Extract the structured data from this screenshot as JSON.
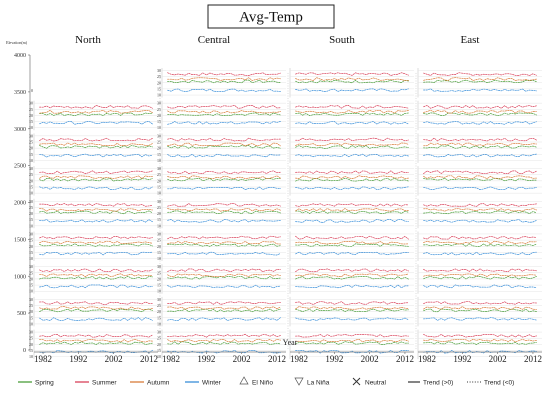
{
  "chart_data": {
    "type": "line",
    "title": "Avg-Temp",
    "columns": [
      "North",
      "Central",
      "South",
      "East"
    ],
    "xlabel": "Year",
    "x_ticks": [
      1982,
      1992,
      2002,
      2012
    ],
    "x_range": [
      1980,
      2014
    ],
    "left_axis": {
      "label": "Elevation(m)",
      "ticks": [
        0,
        500,
        1000,
        1500,
        2000,
        2500,
        3000,
        3500,
        4000
      ],
      "range": [
        0,
        4000
      ]
    },
    "panel_axis": {
      "label": "Value(°C)",
      "ticks": [
        10,
        15,
        20,
        25,
        30
      ],
      "range": [
        8,
        32
      ]
    },
    "panel_rows": 9,
    "series": [
      {
        "name": "Spring",
        "color": "#4a9e3a",
        "dash": "1.5,1"
      },
      {
        "name": "Summer",
        "color": "#d9415a",
        "dash": "1.5,1"
      },
      {
        "name": "Autumn",
        "color": "#d97c3a",
        "dash": "1.5,1"
      },
      {
        "name": "Winter",
        "color": "#3a8fd9",
        "dash": "1.5,1"
      }
    ],
    "panel_means": {
      "Spring": 21,
      "Summer": 27,
      "Autumn": 23,
      "Winter": 14
    },
    "legend_markers": [
      "El Niño",
      "La Niña",
      "Neutral"
    ],
    "legend_trends": [
      "Trend (>0)",
      "Trend (<0)"
    ],
    "legend": [
      {
        "label": "Spring",
        "kind": "line",
        "color": "#4a9e3a"
      },
      {
        "label": "Summer",
        "kind": "line",
        "color": "#d9415a"
      },
      {
        "label": "Autumn",
        "kind": "line",
        "color": "#d97c3a"
      },
      {
        "label": "Winter",
        "kind": "line",
        "color": "#3a8fd9"
      },
      {
        "label": "El Niño",
        "kind": "triangle-up",
        "color": "#555555"
      },
      {
        "label": "La Niña",
        "kind": "triangle-down",
        "color": "#555555"
      },
      {
        "label": "Neutral",
        "kind": "cross",
        "color": "#333333"
      },
      {
        "label": "Trend (>0)",
        "kind": "solid",
        "color": "#333333"
      },
      {
        "label": "Trend (<0)",
        "kind": "dotted",
        "color": "#333333"
      }
    ]
  }
}
